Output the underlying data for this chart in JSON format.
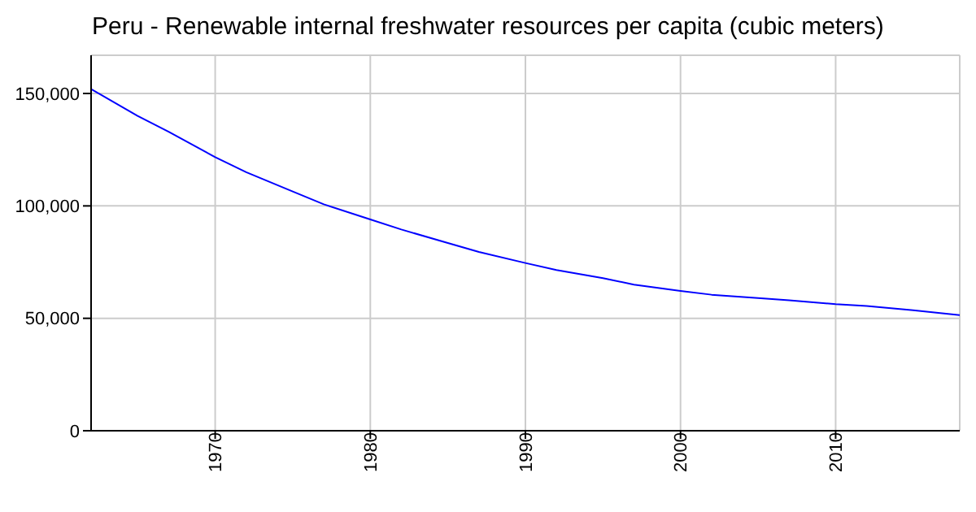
{
  "chart_data": {
    "type": "line",
    "title": "Peru - Renewable internal freshwater resources per capita (cubic meters)",
    "x": [
      1962,
      1965,
      1967,
      1970,
      1972,
      1975,
      1977,
      1980,
      1982,
      1985,
      1987,
      1990,
      1992,
      1995,
      1997,
      2000,
      2002,
      2005,
      2007,
      2010,
      2012,
      2015,
      2018
    ],
    "series": [
      {
        "color": "#0000ff",
        "values": [
          152000,
          140000,
          133000,
          121700,
          115000,
          106400,
          100700,
          94000,
          89500,
          83500,
          79500,
          74600,
          71500,
          67900,
          65000,
          62200,
          60500,
          59000,
          58000,
          56300,
          55500,
          53600,
          51400
        ]
      }
    ],
    "xlim": [
      1962,
      2018
    ],
    "xticks": [
      1970,
      1980,
      1990,
      2000,
      2010
    ],
    "ylim": [
      0,
      167000
    ],
    "yticks": [
      {
        "value": 0,
        "label": "0"
      },
      {
        "value": 50000,
        "label": "50,000"
      },
      {
        "value": 100000,
        "label": "100,000"
      },
      {
        "value": 150000,
        "label": "150,000"
      }
    ],
    "grid": true,
    "marker": "none",
    "line_style": "solid"
  }
}
